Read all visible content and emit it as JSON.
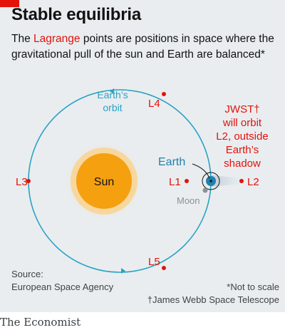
{
  "header": {
    "title": "Stable equilibria",
    "subtitle_highlight": "Lagrange",
    "subtitle_pre": "The",
    "subtitle_rest": "points are positions in space where the gravitational pull of the sun and Earth are balanced*"
  },
  "labels": {
    "orbit_line1": "Earth’s",
    "orbit_line2": "orbit",
    "sun": "Sun",
    "earth": "Earth",
    "moon": "Moon",
    "l1": "L1",
    "l2": "L2",
    "l3": "L3",
    "l4": "L4",
    "l5": "L5",
    "jwst_lines": [
      "JWST†",
      "will orbit",
      "L2, outside",
      "Earth’s",
      "shadow"
    ]
  },
  "colors": {
    "background": "#e9edf0",
    "orbit": "#2aa2c2",
    "sun": "#f5a00f",
    "sun_glow": "#f7d79d",
    "earth": "#1f80ad",
    "lagrange": "#e3120b",
    "moon": "#8c9196",
    "brand_red": "#e3120b"
  },
  "source": {
    "label": "Source:",
    "text": "European Space Agency",
    "note1": "*Not to scale",
    "note2": "†James Webb Space Telescope"
  },
  "footer": {
    "brand": "The Economist"
  }
}
